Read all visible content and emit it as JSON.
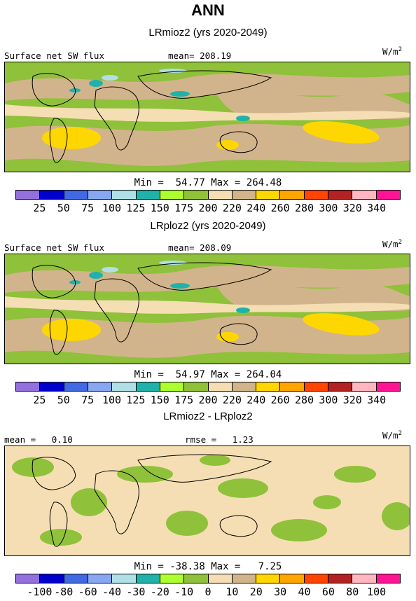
{
  "title": "ANN",
  "units_base": "W/m",
  "units_exp": "2",
  "palette": [
    "#9370db",
    "#0000cd",
    "#4169e1",
    "#87a8f0",
    "#b0e0e6",
    "#20b2aa",
    "#adff2f",
    "#8fc13a",
    "#f5deb3",
    "#d2b48c",
    "#ffd700",
    "#ffa500",
    "#ff4500",
    "#b22222",
    "#ffb6c1",
    "#ff1493"
  ],
  "chart_data": [
    {
      "type": "heatmap",
      "title": "LRmioz2 (yrs 2020-2049)",
      "variable": "Surface net SW flux",
      "stat_label": "mean= 208.19",
      "min_max": "Min =  54.77 Max = 264.48",
      "levels": [
        "25",
        "50",
        "75",
        "100",
        "125",
        "150",
        "175",
        "200",
        "220",
        "240",
        "260",
        "280",
        "300",
        "320",
        "340"
      ]
    },
    {
      "type": "heatmap",
      "title": "LRploz2 (yrs 2020-2049)",
      "variable": "Surface net SW flux",
      "stat_label": "mean= 208.09",
      "min_max": "Min =  54.97 Max = 264.04",
      "levels": [
        "25",
        "50",
        "75",
        "100",
        "125",
        "150",
        "175",
        "200",
        "220",
        "240",
        "260",
        "280",
        "300",
        "320",
        "340"
      ]
    },
    {
      "type": "heatmap",
      "title": "LRmioz2 - LRploz2",
      "variable": "mean =   0.10",
      "stat_label": "rmse =   1.23",
      "min_max": "Min = -38.38 Max =   7.25",
      "levels": [
        "-100",
        "-80",
        "-60",
        "-40",
        "-30",
        "-20",
        "-10",
        "0",
        "10",
        "20",
        "30",
        "40",
        "60",
        "80",
        "100"
      ]
    }
  ]
}
